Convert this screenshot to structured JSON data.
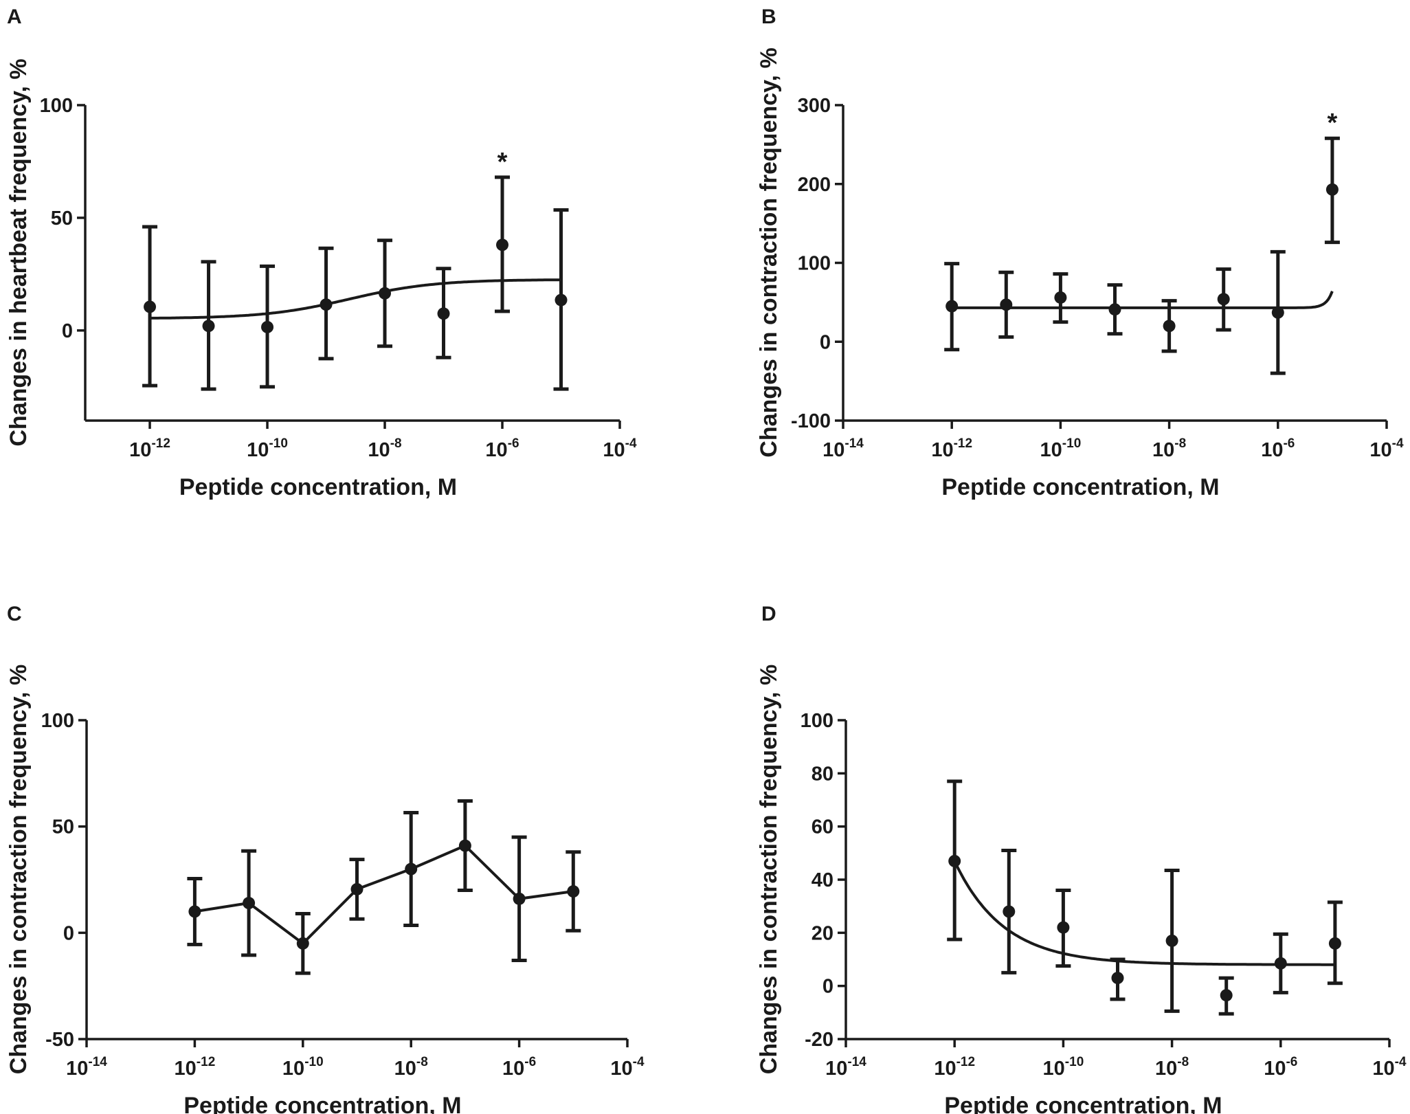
{
  "figure": {
    "colors": {
      "ink": "#1a1a1a",
      "background": "#ffffff"
    }
  },
  "chart_data": [
    {
      "panel": "A",
      "type": "scatter",
      "fit": "sigmoid",
      "xlabel": "Peptide concentration, M",
      "ylabel": "Changes in heartbeat frequency, %",
      "xscale": "log10",
      "xlim_log": [
        -13.1,
        -4
      ],
      "ylim": [
        -40,
        100
      ],
      "yticks": [
        0,
        50,
        100
      ],
      "xticks_log": [
        -12,
        -10,
        -8,
        -6,
        -4
      ],
      "x_log": [
        -12,
        -11,
        -10,
        -9,
        -8,
        -7,
        -6,
        -5
      ],
      "values": [
        10.5,
        2,
        1.5,
        11.5,
        16.5,
        7.5,
        38,
        13.5
      ],
      "err_upper": [
        46,
        30.5,
        28.5,
        36.5,
        40,
        27.5,
        68,
        53.5
      ],
      "err_lower": [
        -24.5,
        -26,
        -25,
        -12.5,
        -7,
        -12,
        8.5,
        -26
      ],
      "fit_curve": {
        "bottom": 5.3,
        "top": 22.6,
        "log_ec50": -8.6,
        "hill": 0.6,
        "x_range": [
          -12,
          -5
        ]
      },
      "annotations": [
        {
          "text": "*",
          "x_log": -6,
          "y": 68
        }
      ]
    },
    {
      "panel": "B",
      "type": "scatter",
      "fit": "sigmoid",
      "xlabel": "Peptide concentration, M",
      "ylabel": "Changes in contraction frequency, %",
      "xscale": "log10",
      "xlim_log": [
        -14,
        -4
      ],
      "ylim": [
        -100,
        300
      ],
      "yticks": [
        -100,
        0,
        100,
        200,
        300
      ],
      "xticks_log": [
        -14,
        -12,
        -10,
        -8,
        -6,
        -4
      ],
      "x_log": [
        -12,
        -11,
        -10,
        -9,
        -8,
        -7,
        -6,
        -5
      ],
      "values": [
        45,
        47,
        56,
        41,
        20,
        54,
        37,
        193
      ],
      "err_upper": [
        99,
        88,
        86,
        72,
        52,
        92,
        114,
        258
      ],
      "err_lower": [
        -10,
        6,
        25,
        10,
        -12,
        15,
        -40,
        126
      ],
      "fit_curve": {
        "bottom": 43,
        "top": 900,
        "log_ec50": -4.6,
        "hill": 4,
        "x_range": [
          -12,
          -5
        ]
      },
      "annotations": [
        {
          "text": "*",
          "x_log": -5,
          "y": 258
        }
      ]
    },
    {
      "panel": "C",
      "type": "line",
      "xlabel": "Peptide concentration, M",
      "ylabel": "Changes in contraction frequency, %",
      "xscale": "log10",
      "xlim_log": [
        -14,
        -4
      ],
      "ylim": [
        -50,
        100
      ],
      "yticks": [
        -50,
        0,
        50,
        100
      ],
      "xticks_log": [
        -14,
        -12,
        -10,
        -8,
        -6,
        -4
      ],
      "x_log": [
        -12,
        -11,
        -10,
        -9,
        -8,
        -7,
        -6,
        -5
      ],
      "values": [
        10,
        14,
        -5,
        20.5,
        30,
        41,
        16,
        19.5
      ],
      "err_upper": [
        25.5,
        38.5,
        9,
        34.5,
        56.5,
        62,
        45,
        38
      ],
      "err_lower": [
        -5.5,
        -10.5,
        -19,
        6.5,
        3.5,
        20,
        -13,
        1
      ],
      "annotations": []
    },
    {
      "panel": "D",
      "type": "scatter",
      "fit": "sigmoid",
      "xlabel": "Peptide concentration, M",
      "ylabel": "Changes in contraction frequency, %",
      "xscale": "log10",
      "xlim_log": [
        -14,
        -4
      ],
      "ylim": [
        -20,
        100
      ],
      "yticks": [
        -20,
        0,
        20,
        40,
        60,
        80,
        100
      ],
      "xticks_log": [
        -14,
        -12,
        -10,
        -8,
        -6,
        -4
      ],
      "x_log": [
        -12,
        -11,
        -10,
        -9,
        -8,
        -7,
        -6,
        -5
      ],
      "values": [
        47,
        28,
        22,
        3,
        17,
        -3.5,
        8.5,
        16
      ],
      "err_upper": [
        77,
        51,
        36,
        10,
        43.5,
        3,
        19.5,
        31.5
      ],
      "err_lower": [
        17.5,
        5,
        7.5,
        -5,
        -9.5,
        -10.5,
        -2.5,
        1
      ],
      "fit_curve": {
        "bottom": 8,
        "top": 47,
        "log_ec50": -11,
        "hill": -0.75,
        "anchor_x_log": -12,
        "x_range": [
          -12,
          -5
        ]
      },
      "annotations": []
    }
  ]
}
